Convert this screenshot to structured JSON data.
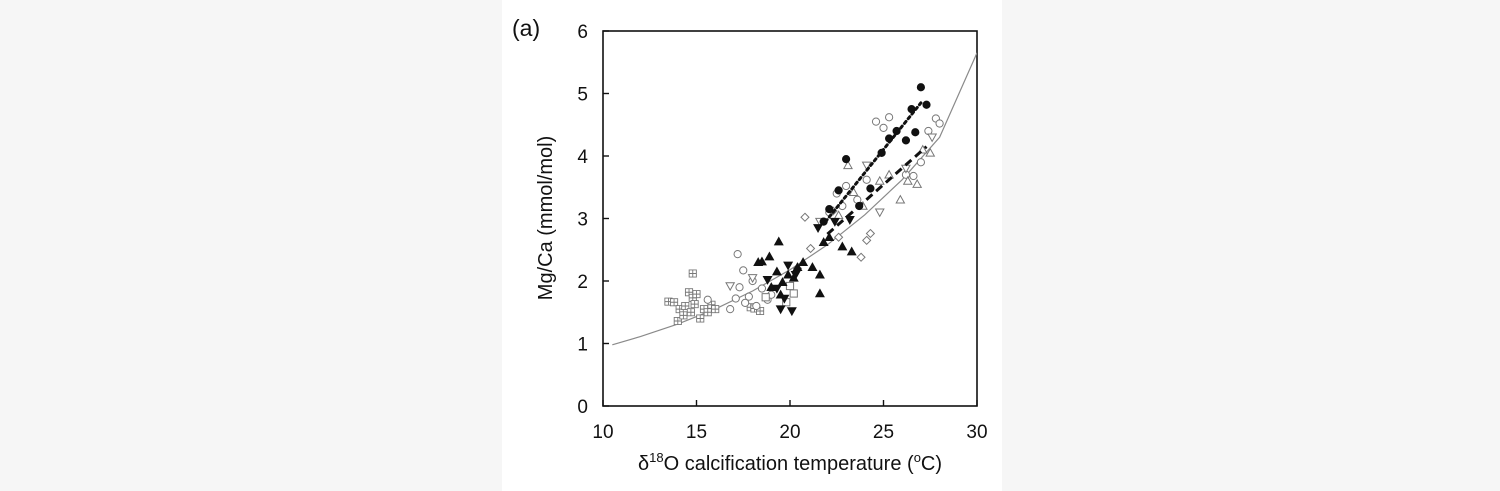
{
  "panel_label": "(a)",
  "chart_data": {
    "type": "scatter",
    "title": "",
    "xlabel": "δ18O calcification temperature (°C)",
    "xlabel_parts": {
      "prefix": "δ",
      "sup1": "18",
      "mid": "O calcification temperature (",
      "sup2": "o",
      "suffix": "C)"
    },
    "ylabel": "Mg/Ca (mmol/mol)",
    "xlim": [
      10,
      30
    ],
    "ylim": [
      0,
      6
    ],
    "xticks": [
      10,
      15,
      20,
      25,
      30
    ],
    "yticks": [
      0,
      1,
      2,
      3,
      4,
      5,
      6
    ],
    "grid": false,
    "legend": "none",
    "curve": {
      "name": "",
      "style": "solid",
      "color": "#8a8a8a",
      "x": [
        10.5,
        12,
        14,
        16,
        18,
        20,
        22,
        24,
        26,
        28,
        30
      ],
      "y": [
        0.98,
        1.11,
        1.31,
        1.55,
        1.84,
        2.18,
        2.58,
        3.06,
        3.62,
        4.3,
        5.65
      ]
    },
    "trend_lines": [
      {
        "style": "dotted",
        "color": "#111111",
        "x": [
          21.9,
          27.0
        ],
        "y": [
          2.95,
          4.85
        ]
      },
      {
        "style": "dashed",
        "color": "#111111",
        "x": [
          22.0,
          27.3
        ],
        "y": [
          2.75,
          4.15
        ]
      }
    ],
    "series": [
      {
        "marker": "square-cross",
        "color": "#777777",
        "x": [
          13.5,
          13.8,
          14.0,
          14.1,
          14.3,
          14.4,
          14.6,
          14.7,
          14.8,
          14.9,
          15.0,
          15.2,
          15.4,
          15.6,
          15.8,
          16.0,
          14.8,
          17.9,
          18.1,
          18.4
        ],
        "y": [
          1.67,
          1.66,
          1.36,
          1.55,
          1.45,
          1.6,
          1.82,
          1.5,
          1.73,
          1.63,
          1.79,
          1.4,
          1.55,
          1.5,
          1.62,
          1.55,
          2.12,
          1.58,
          1.56,
          1.52
        ]
      },
      {
        "marker": "circle-open",
        "color": "#777777",
        "x": [
          15.6,
          16.8,
          17.1,
          17.3,
          17.6,
          17.8,
          18.0,
          18.2,
          18.5,
          18.8,
          19.0,
          17.2,
          17.5,
          22.5,
          23.0,
          23.6,
          24.1,
          24.6,
          25.0,
          25.3,
          26.2,
          26.6,
          27.0,
          27.4,
          27.8,
          28.0,
          22.1,
          22.8
        ],
        "y": [
          1.7,
          1.55,
          1.72,
          1.9,
          1.65,
          1.75,
          2.0,
          1.6,
          1.88,
          1.7,
          1.78,
          2.43,
          2.17,
          3.4,
          3.52,
          3.3,
          3.62,
          4.55,
          4.45,
          4.62,
          3.7,
          3.68,
          3.9,
          4.4,
          4.6,
          4.52,
          3.1,
          3.2
        ]
      },
      {
        "marker": "triangle-up-open",
        "color": "#777777",
        "x": [
          23.1,
          23.4,
          23.9,
          24.8,
          25.3,
          25.9,
          26.3,
          26.8,
          27.1,
          27.5,
          22.6
        ],
        "y": [
          3.85,
          3.42,
          3.2,
          3.6,
          3.7,
          3.3,
          3.6,
          3.55,
          4.1,
          4.05,
          3.05
        ]
      },
      {
        "marker": "triangle-down-open",
        "color": "#777777",
        "x": [
          21.6,
          24.1,
          24.8,
          26.2,
          27.6,
          16.8,
          18.0
        ],
        "y": [
          2.95,
          3.85,
          3.1,
          3.8,
          4.3,
          1.92,
          2.05
        ]
      },
      {
        "marker": "diamond-open",
        "color": "#777777",
        "x": [
          20.8,
          21.1,
          22.3,
          22.6,
          23.8,
          24.1,
          24.3,
          20.4
        ],
        "y": [
          3.02,
          2.52,
          3.12,
          2.7,
          2.38,
          2.65,
          2.76,
          2.2
        ]
      },
      {
        "marker": "square-open",
        "color": "#777777",
        "x": [
          20.0,
          20.2,
          19.8,
          18.7
        ],
        "y": [
          1.92,
          1.8,
          1.66,
          1.74
        ]
      },
      {
        "marker": "triangle-up-filled",
        "color": "#111111",
        "x": [
          18.5,
          18.9,
          19.3,
          19.6,
          19.9,
          20.2,
          19.0,
          19.5,
          20.4,
          21.8,
          22.1,
          22.8,
          23.3,
          21.2,
          21.6,
          18.3,
          19.4,
          20.7,
          21.6
        ],
        "y": [
          2.31,
          2.39,
          2.15,
          1.98,
          2.1,
          2.05,
          1.9,
          1.78,
          2.22,
          2.62,
          2.7,
          2.55,
          2.47,
          2.22,
          2.1,
          2.3,
          2.63,
          2.3,
          1.8
        ]
      },
      {
        "marker": "triangle-down-filled",
        "color": "#111111",
        "x": [
          18.8,
          19.3,
          19.7,
          20.1,
          19.9,
          21.5,
          22.4,
          23.2,
          19.5,
          20.3
        ],
        "y": [
          2.02,
          1.88,
          1.72,
          1.52,
          2.25,
          2.85,
          2.95,
          2.98,
          1.55,
          2.1
        ]
      },
      {
        "marker": "circle-filled",
        "color": "#111111",
        "x": [
          21.8,
          22.1,
          22.6,
          23.0,
          23.7,
          24.3,
          24.9,
          25.3,
          25.7,
          26.2,
          26.5,
          27.0,
          27.3,
          26.7
        ],
        "y": [
          2.95,
          3.15,
          3.45,
          3.95,
          3.2,
          3.48,
          4.05,
          4.28,
          4.4,
          4.25,
          4.75,
          5.1,
          4.82,
          4.38
        ]
      }
    ]
  }
}
